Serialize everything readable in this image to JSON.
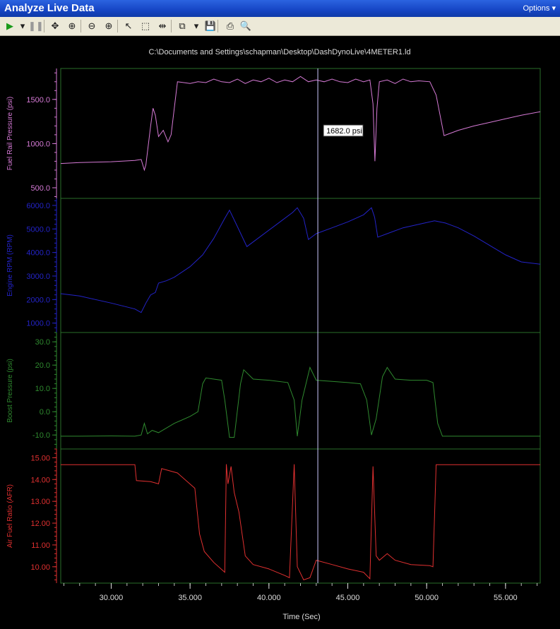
{
  "window": {
    "title": "Analyze Live Data",
    "options_label": "Options"
  },
  "toolbar": {
    "buttons": [
      {
        "name": "play-icon",
        "glyph": "▶"
      },
      {
        "name": "play-dropdown-icon",
        "glyph": "▾"
      },
      {
        "name": "pause-icon",
        "glyph": "❚❚"
      },
      {
        "name": "pan-icon",
        "glyph": "✥"
      },
      {
        "name": "zoom-fit-icon",
        "glyph": "⊕"
      },
      {
        "name": "zoom-out-icon",
        "glyph": "⊖"
      },
      {
        "name": "zoom-in-icon",
        "glyph": "⊕"
      },
      {
        "name": "pointer-icon",
        "glyph": "↖"
      },
      {
        "name": "select-rect-icon",
        "glyph": "⬚"
      },
      {
        "name": "cursor-split-icon",
        "glyph": "⇹"
      },
      {
        "name": "copy-icon",
        "glyph": "⧉"
      },
      {
        "name": "copy-dropdown-icon",
        "glyph": "▾"
      },
      {
        "name": "save-icon",
        "glyph": "💾"
      },
      {
        "name": "print-icon",
        "glyph": "⎙"
      },
      {
        "name": "print-preview-icon",
        "glyph": "🔍"
      }
    ]
  },
  "chart_data": {
    "type": "line",
    "title": "C:\\Documents and Settings\\schapman\\Desktop\\DashDynoLive\\4METER1.ld",
    "xlabel": "Time (Sec)",
    "xlim": [
      26.8,
      57.2
    ],
    "x_ticks": [
      "30.000",
      "35.000",
      "40.000",
      "45.000",
      "50.000",
      "55.000"
    ],
    "cursor": {
      "x": 43.1,
      "label": "1682.0 psi"
    },
    "grid": false,
    "panels": [
      {
        "name": "Fuel Rail Pressure (psi)",
        "color": "#d67ad6",
        "ylim": [
          380,
          1850
        ],
        "ticks": [
          "500.0",
          "1000.0",
          "1500.0"
        ],
        "points": [
          [
            26.8,
            775
          ],
          [
            28,
            785
          ],
          [
            30,
            795
          ],
          [
            31.5,
            810
          ],
          [
            31.9,
            820
          ],
          [
            32.1,
            700
          ],
          [
            32.2,
            760
          ],
          [
            32.5,
            1200
          ],
          [
            32.65,
            1400
          ],
          [
            32.8,
            1320
          ],
          [
            33.0,
            1080
          ],
          [
            33.3,
            1150
          ],
          [
            33.6,
            1020
          ],
          [
            33.8,
            1100
          ],
          [
            34.2,
            1700
          ],
          [
            35,
            1680
          ],
          [
            35.5,
            1700
          ],
          [
            36,
            1690
          ],
          [
            36.5,
            1730
          ],
          [
            37,
            1700
          ],
          [
            37.5,
            1690
          ],
          [
            38,
            1730
          ],
          [
            38.5,
            1680
          ],
          [
            39,
            1720
          ],
          [
            39.5,
            1700
          ],
          [
            40,
            1740
          ],
          [
            40.5,
            1690
          ],
          [
            41,
            1720
          ],
          [
            41.5,
            1700
          ],
          [
            42,
            1760
          ],
          [
            42.5,
            1700
          ],
          [
            43,
            1720
          ],
          [
            43.5,
            1700
          ],
          [
            44,
            1730
          ],
          [
            44.5,
            1700
          ],
          [
            45,
            1690
          ],
          [
            45.5,
            1730
          ],
          [
            46,
            1700
          ],
          [
            46.4,
            1720
          ],
          [
            46.6,
            1450
          ],
          [
            46.72,
            800
          ],
          [
            46.85,
            1400
          ],
          [
            47,
            1700
          ],
          [
            47.5,
            1720
          ],
          [
            48,
            1680
          ],
          [
            48.5,
            1730
          ],
          [
            49,
            1700
          ],
          [
            49.5,
            1710
          ],
          [
            50.2,
            1700
          ],
          [
            50.6,
            1550
          ],
          [
            51.1,
            1090
          ],
          [
            52,
            1150
          ],
          [
            53,
            1200
          ],
          [
            54,
            1240
          ],
          [
            55,
            1280
          ],
          [
            56,
            1320
          ],
          [
            57.2,
            1360
          ]
        ]
      },
      {
        "name": "Engine RPM (RPM)",
        "color": "#2323c8",
        "ylim": [
          600,
          6300
        ],
        "ticks": [
          "1000.0",
          "2000.0",
          "3000.0",
          "4000.0",
          "5000.0",
          "6000.0"
        ],
        "points": [
          [
            26.8,
            2250
          ],
          [
            28,
            2150
          ],
          [
            30,
            1850
          ],
          [
            31.5,
            1600
          ],
          [
            31.9,
            1450
          ],
          [
            32.2,
            1850
          ],
          [
            32.5,
            2200
          ],
          [
            32.8,
            2300
          ],
          [
            33.0,
            2700
          ],
          [
            33.5,
            2800
          ],
          [
            34,
            2950
          ],
          [
            35,
            3400
          ],
          [
            35.8,
            3900
          ],
          [
            36.5,
            4600
          ],
          [
            37.2,
            5450
          ],
          [
            37.5,
            5800
          ],
          [
            38,
            5100
          ],
          [
            38.6,
            4250
          ],
          [
            39.5,
            4700
          ],
          [
            40.5,
            5200
          ],
          [
            41.5,
            5700
          ],
          [
            41.8,
            5900
          ],
          [
            42.2,
            5450
          ],
          [
            42.5,
            4550
          ],
          [
            43,
            4800
          ],
          [
            44,
            5050
          ],
          [
            45,
            5300
          ],
          [
            46,
            5600
          ],
          [
            46.5,
            5900
          ],
          [
            46.7,
            5500
          ],
          [
            46.9,
            4650
          ],
          [
            47.5,
            4800
          ],
          [
            48.5,
            5050
          ],
          [
            49.5,
            5200
          ],
          [
            50.5,
            5350
          ],
          [
            51.2,
            5250
          ],
          [
            52,
            5050
          ],
          [
            53,
            4700
          ],
          [
            54,
            4300
          ],
          [
            55,
            3900
          ],
          [
            56,
            3600
          ],
          [
            57.2,
            3500
          ]
        ]
      },
      {
        "name": "Boost Pressure (psi)",
        "color": "#2f8a2f",
        "ylim": [
          -16,
          34
        ],
        "ticks": [
          "-10.0",
          "0.0",
          "10.0",
          "20.0",
          "30.0"
        ],
        "points": [
          [
            26.8,
            -10.5
          ],
          [
            28,
            -10.5
          ],
          [
            30,
            -10.4
          ],
          [
            31.5,
            -10.5
          ],
          [
            31.9,
            -10
          ],
          [
            32.1,
            -5
          ],
          [
            32.3,
            -9.5
          ],
          [
            32.6,
            -8
          ],
          [
            33,
            -9
          ],
          [
            34,
            -5
          ],
          [
            35,
            -2
          ],
          [
            35.5,
            0
          ],
          [
            35.8,
            12
          ],
          [
            36,
            14.5
          ],
          [
            37,
            13.5
          ],
          [
            37.2,
            5
          ],
          [
            37.5,
            -11
          ],
          [
            37.8,
            -11
          ],
          [
            38.2,
            12
          ],
          [
            38.4,
            18
          ],
          [
            39,
            14
          ],
          [
            40,
            13.5
          ],
          [
            41.2,
            12.5
          ],
          [
            41.6,
            5
          ],
          [
            41.8,
            -10.5
          ],
          [
            42.1,
            5
          ],
          [
            42.6,
            19
          ],
          [
            43,
            13.5
          ],
          [
            44,
            13
          ],
          [
            45,
            12.5
          ],
          [
            45.8,
            12
          ],
          [
            46.2,
            5
          ],
          [
            46.5,
            -10
          ],
          [
            46.8,
            -3
          ],
          [
            47.2,
            15
          ],
          [
            47.5,
            19
          ],
          [
            48,
            14
          ],
          [
            49,
            13.5
          ],
          [
            50,
            13.5
          ],
          [
            50.4,
            12.5
          ],
          [
            50.7,
            -5
          ],
          [
            51,
            -10.5
          ],
          [
            53,
            -10.5
          ],
          [
            55,
            -10.5
          ],
          [
            57.2,
            -10.5
          ]
        ]
      },
      {
        "name": "Air Fuel Ratio (AFR)",
        "color": "#e03030",
        "ylim": [
          9.25,
          15.4
        ],
        "ticks": [
          "10.00",
          "11.00",
          "12.00",
          "13.00",
          "14.00",
          "15.00"
        ],
        "points": [
          [
            26.8,
            14.68
          ],
          [
            31.5,
            14.68
          ],
          [
            31.6,
            13.95
          ],
          [
            32.5,
            13.9
          ],
          [
            33,
            13.8
          ],
          [
            33.2,
            14.5
          ],
          [
            34.2,
            14.3
          ],
          [
            35.3,
            13.6
          ],
          [
            35.6,
            11.5
          ],
          [
            35.9,
            10.7
          ],
          [
            36.5,
            10.2
          ],
          [
            37.2,
            9.75
          ],
          [
            37.3,
            14.7
          ],
          [
            37.4,
            13.8
          ],
          [
            37.6,
            14.6
          ],
          [
            37.8,
            13.4
          ],
          [
            38.1,
            12.5
          ],
          [
            38.5,
            10.5
          ],
          [
            39,
            10.1
          ],
          [
            40,
            9.9
          ],
          [
            41,
            9.6
          ],
          [
            41.3,
            9.5
          ],
          [
            41.6,
            14.7
          ],
          [
            41.8,
            10
          ],
          [
            42.2,
            9.4
          ],
          [
            42.6,
            9.5
          ],
          [
            43,
            10.3
          ],
          [
            44,
            10.1
          ],
          [
            45,
            9.9
          ],
          [
            46,
            9.75
          ],
          [
            46.4,
            9.45
          ],
          [
            46.6,
            14.6
          ],
          [
            46.8,
            10.5
          ],
          [
            47,
            10.3
          ],
          [
            47.5,
            10.6
          ],
          [
            48,
            10.3
          ],
          [
            49,
            10.1
          ],
          [
            50.2,
            10.05
          ],
          [
            50.4,
            10.0
          ],
          [
            50.6,
            14.68
          ],
          [
            52,
            14.68
          ],
          [
            57.2,
            14.68
          ]
        ]
      }
    ]
  }
}
